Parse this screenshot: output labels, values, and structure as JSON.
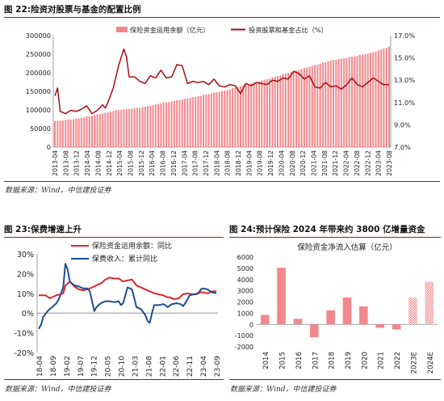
{
  "fig22": {
    "title": "图 22:险资对股票与基金的配置比例",
    "source": "数据来源：Wind，中信建投证券"
  },
  "fig23": {
    "title": "图 23:保费增速上升",
    "source": "数据来源：Wind，中信建投证券"
  },
  "fig24": {
    "title": "图 24:预计保险 2024 年带来约 3800 亿增量资金",
    "source": "数据来源：Wind，中信建投证券"
  },
  "colors": {
    "accent_red": "#9b1b1b",
    "bar_pink": "#f2888d",
    "line_darkred": "#a80d12",
    "line_blue": "#1f4e8c",
    "line_red": "#e0262c"
  },
  "chart_data": [
    {
      "id": "fig22",
      "type": "bar+line",
      "legend": [
        "保险资金运用余额（亿元）",
        "投资股票和基金占比（%）"
      ],
      "legend_placement": "top",
      "x_ticks": [
        "2013-04",
        "2013-08",
        "2013-12",
        "2014-04",
        "2014-08",
        "2014-12",
        "2015-04",
        "2015-08",
        "2015-12",
        "2016-04",
        "2016-08",
        "2016-12",
        "2017-04",
        "2017-08",
        "2017-12",
        "2018-04",
        "2018-08",
        "2018-12",
        "2019-04",
        "2019-08",
        "2019-12",
        "2020-04",
        "2020-08",
        "2020-12",
        "2021-04",
        "2021-08",
        "2021-12",
        "2022-04",
        "2022-08",
        "2022-12",
        "2023-04",
        "2023-08"
      ],
      "y_left": {
        "min": 0,
        "max": 300000,
        "ticks": [
          "0",
          "50000",
          "100000",
          "150000",
          "200000",
          "250000",
          "300000"
        ]
      },
      "y_right": {
        "min": 7.0,
        "max": 17.0,
        "ticks": [
          "7.0%",
          "9.0%",
          "11.0%",
          "13.0%",
          "15.0%",
          "17.0%"
        ]
      },
      "bar_series": {
        "name": "保险资金运用余额（亿元）",
        "anchors": [
          [
            0,
            70000
          ],
          [
            8,
            76000
          ],
          [
            16,
            88000
          ],
          [
            24,
            100000
          ],
          [
            32,
            106000
          ],
          [
            40,
            118000
          ],
          [
            48,
            128000
          ],
          [
            56,
            140000
          ],
          [
            64,
            152000
          ],
          [
            72,
            168000
          ],
          [
            80,
            183000
          ],
          [
            88,
            200000
          ],
          [
            96,
            216000
          ],
          [
            104,
            233000
          ],
          [
            112,
            243000
          ],
          [
            120,
            255000
          ],
          [
            126,
            270000
          ]
        ]
      },
      "line_series": {
        "name": "投资股票和基金占比（%）",
        "anchors": [
          [
            0,
            11.6
          ],
          [
            1,
            12.3
          ],
          [
            2,
            10.2
          ],
          [
            4,
            10.0
          ],
          [
            6,
            10.3
          ],
          [
            8,
            10.2
          ],
          [
            10,
            10.4
          ],
          [
            12,
            10.7
          ],
          [
            14,
            10.0
          ],
          [
            16,
            10.3
          ],
          [
            18,
            10.8
          ],
          [
            19,
            10.5
          ],
          [
            20,
            11.0
          ],
          [
            22,
            12.3
          ],
          [
            24,
            14.3
          ],
          [
            26,
            15.8
          ],
          [
            27,
            15.1
          ],
          [
            28,
            13.3
          ],
          [
            30,
            13.3
          ],
          [
            32,
            12.9
          ],
          [
            34,
            12.7
          ],
          [
            36,
            13.4
          ],
          [
            38,
            13.2
          ],
          [
            40,
            13.9
          ],
          [
            42,
            13.2
          ],
          [
            44,
            13.3
          ],
          [
            46,
            14.4
          ],
          [
            48,
            14.3
          ],
          [
            50,
            12.7
          ],
          [
            52,
            12.9
          ],
          [
            54,
            12.8
          ],
          [
            56,
            12.9
          ],
          [
            58,
            12.6
          ],
          [
            60,
            13.1
          ],
          [
            62,
            12.5
          ],
          [
            64,
            12.4
          ],
          [
            66,
            12.6
          ],
          [
            68,
            12.5
          ],
          [
            70,
            11.8
          ],
          [
            72,
            12.7
          ],
          [
            74,
            12.5
          ],
          [
            76,
            12.8
          ],
          [
            78,
            12.7
          ],
          [
            80,
            12.6
          ],
          [
            82,
            13.0
          ],
          [
            84,
            12.9
          ],
          [
            86,
            13.2
          ],
          [
            88,
            13.1
          ],
          [
            90,
            13.8
          ],
          [
            92,
            13.6
          ],
          [
            94,
            13.1
          ],
          [
            96,
            13.4
          ],
          [
            98,
            12.4
          ],
          [
            100,
            12.3
          ],
          [
            102,
            12.8
          ],
          [
            104,
            12.4
          ],
          [
            106,
            12.5
          ],
          [
            108,
            12.2
          ],
          [
            110,
            12.6
          ],
          [
            112,
            13.2
          ],
          [
            114,
            12.6
          ],
          [
            116,
            12.4
          ],
          [
            118,
            12.8
          ],
          [
            120,
            13.2
          ],
          [
            122,
            12.9
          ],
          [
            124,
            12.6
          ],
          [
            126,
            12.6
          ]
        ]
      }
    },
    {
      "id": "fig23",
      "type": "line",
      "legend": [
        "保险资金运用余额：同比",
        "保费收入：累计同比"
      ],
      "legend_placement": "top",
      "x_ticks": [
        "18-04",
        "18-09",
        "19-02",
        "19-07",
        "19-12",
        "20-05",
        "20-10",
        "21-03",
        "21-08",
        "22-01",
        "22-06",
        "22-11",
        "23-04",
        "23-09"
      ],
      "y": {
        "min": -20,
        "max": 30,
        "ticks": [
          "-20%",
          "-10%",
          "0%",
          "10%",
          "20%",
          "30%"
        ]
      },
      "series": [
        {
          "name": "保险资金运用余额：同比",
          "anchors": [
            [
              0,
              9
            ],
            [
              3,
              9
            ],
            [
              5,
              7.5
            ],
            [
              6,
              8
            ],
            [
              8,
              9
            ],
            [
              10,
              9.5
            ],
            [
              11,
              10
            ],
            [
              12,
              14
            ],
            [
              14,
              16
            ],
            [
              16,
              13.5
            ],
            [
              18,
              12
            ],
            [
              20,
              11.5
            ],
            [
              22,
              12
            ],
            [
              24,
              13
            ],
            [
              26,
              14
            ],
            [
              28,
              15
            ],
            [
              30,
              17
            ],
            [
              32,
              18
            ],
            [
              34,
              17.5
            ],
            [
              36,
              17.5
            ],
            [
              38,
              16
            ],
            [
              40,
              16.5
            ],
            [
              42,
              17
            ],
            [
              44,
              14
            ],
            [
              46,
              13
            ],
            [
              48,
              12
            ],
            [
              50,
              11
            ],
            [
              52,
              10
            ],
            [
              54,
              9.5
            ],
            [
              56,
              9
            ],
            [
              58,
              8
            ],
            [
              59,
              8
            ],
            [
              61,
              7
            ],
            [
              63,
              7.5
            ],
            [
              65,
              9.5
            ],
            [
              67,
              10
            ],
            [
              69,
              9.5
            ],
            [
              71,
              9.5
            ],
            [
              72,
              10.5
            ],
            [
              74,
              10.5
            ],
            [
              76,
              10
            ],
            [
              78,
              11
            ],
            [
              80,
              11
            ]
          ]
        },
        {
          "name": "保费收入：累计同比",
          "anchors": [
            [
              0,
              -8
            ],
            [
              1,
              -6
            ],
            [
              2,
              -2
            ],
            [
              4,
              1
            ],
            [
              6,
              3
            ],
            [
              8,
              5
            ],
            [
              9,
              7
            ],
            [
              10,
              10
            ],
            [
              11,
              13
            ],
            [
              12,
              25
            ],
            [
              13,
              22
            ],
            [
              14,
              16
            ],
            [
              16,
              14
            ],
            [
              18,
              13.5
            ],
            [
              20,
              12.5
            ],
            [
              22,
              12.5
            ],
            [
              23,
              11
            ],
            [
              24,
              6
            ],
            [
              25,
              1
            ],
            [
              26,
              3
            ],
            [
              28,
              5
            ],
            [
              30,
              6
            ],
            [
              32,
              6
            ],
            [
              34,
              5.5
            ],
            [
              36,
              6
            ],
            [
              37,
              4
            ],
            [
              38,
              5
            ],
            [
              40,
              13
            ],
            [
              42,
              12
            ],
            [
              44,
              3
            ],
            [
              46,
              2
            ],
            [
              48,
              -1
            ],
            [
              49,
              -4
            ],
            [
              50,
              -5
            ],
            [
              51,
              0
            ],
            [
              52,
              4
            ],
            [
              54,
              4
            ],
            [
              56,
              4.5
            ],
            [
              57,
              4
            ],
            [
              58,
              3
            ],
            [
              60,
              4.5
            ],
            [
              62,
              5
            ],
            [
              64,
              4.5
            ],
            [
              65,
              3.5
            ],
            [
              66,
              5
            ],
            [
              68,
              9
            ],
            [
              70,
              9.5
            ],
            [
              72,
              10
            ],
            [
              73,
              12
            ],
            [
              74,
              12.5
            ],
            [
              76,
              12
            ],
            [
              78,
              10.5
            ],
            [
              80,
              10
            ]
          ]
        }
      ]
    },
    {
      "id": "fig24",
      "type": "bar",
      "title": "保险资金净流入估算（亿元）",
      "categories": [
        "2014",
        "2015",
        "2016",
        "2017",
        "2018",
        "2019",
        "2020",
        "2021",
        "2022",
        "2023E",
        "2024E"
      ],
      "values": [
        850,
        5050,
        500,
        -1150,
        1250,
        2400,
        1600,
        -300,
        -450,
        2400,
        3800
      ],
      "estimate_flags": [
        false,
        false,
        false,
        false,
        false,
        false,
        false,
        false,
        false,
        true,
        true
      ],
      "y": {
        "min": -2000,
        "max": 6000,
        "ticks": [
          "-2000",
          "-1000",
          "0",
          "1000",
          "2000",
          "3000",
          "4000",
          "5000",
          "6000"
        ]
      }
    }
  ]
}
